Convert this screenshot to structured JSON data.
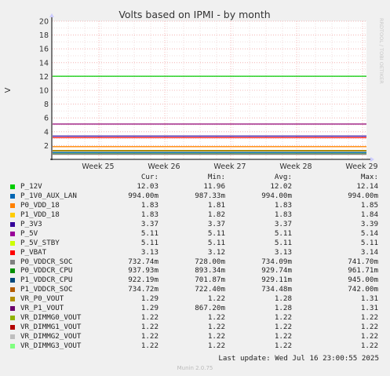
{
  "chart_data": {
    "type": "line",
    "title": "Volts based on IPMI - by month",
    "ylabel": "V",
    "watermark": "RRDTOOL / TOBI OETIKER",
    "ylim": [
      0,
      20
    ],
    "yticks": [
      2,
      4,
      6,
      8,
      10,
      12,
      14,
      16,
      18,
      20
    ],
    "x_ticks": [
      "Week 25",
      "Week 26",
      "Week 27",
      "Week 28",
      "Week 29"
    ],
    "grid": true,
    "legend_headers": {
      "cur": "Cur:",
      "min": "Min:",
      "avg": "Avg:",
      "max": "Max:"
    },
    "series": [
      {
        "name": "P_12V",
        "color": "#00cc00",
        "cur": "12.03",
        "min": "11.96",
        "avg": "12.02",
        "max": "12.14",
        "level": 12.03
      },
      {
        "name": "P_1V0_AUX_LAN",
        "color": "#0066b3",
        "cur": "994.00m",
        "min": "987.33m",
        "avg": "994.00m",
        "max": "994.00m",
        "level": 0.994
      },
      {
        "name": "P0_VDD_18",
        "color": "#ff8000",
        "cur": "1.83",
        "min": "1.81",
        "avg": "1.83",
        "max": "1.85",
        "level": 1.83
      },
      {
        "name": "P1_VDD_18",
        "color": "#ffcc00",
        "cur": "1.83",
        "min": "1.82",
        "avg": "1.83",
        "max": "1.84",
        "level": 1.83
      },
      {
        "name": "P_3V3",
        "color": "#330099",
        "cur": "3.37",
        "min": "3.37",
        "avg": "3.37",
        "max": "3.39",
        "level": 3.37
      },
      {
        "name": "P_5V",
        "color": "#990099",
        "cur": "5.11",
        "min": "5.11",
        "avg": "5.11",
        "max": "5.14",
        "level": 5.11
      },
      {
        "name": "P_5V_STBY",
        "color": "#ccff00",
        "cur": "5.11",
        "min": "5.11",
        "avg": "5.11",
        "max": "5.11",
        "level": 5.11
      },
      {
        "name": "P_VBAT",
        "color": "#ff0000",
        "cur": "3.13",
        "min": "3.12",
        "avg": "3.13",
        "max": "3.14",
        "level": 3.13
      },
      {
        "name": "P0_VDDCR_SOC",
        "color": "#808080",
        "cur": "732.74m",
        "min": "728.00m",
        "avg": "734.09m",
        "max": "741.70m",
        "level": 0.733
      },
      {
        "name": "P0_VDDCR_CPU",
        "color": "#008f00",
        "cur": "937.93m",
        "min": "893.34m",
        "avg": "929.74m",
        "max": "961.71m",
        "level": 0.938
      },
      {
        "name": "P1_VDDCR_CPU",
        "color": "#00487d",
        "cur": "922.19m",
        "min": "701.87m",
        "avg": "929.11m",
        "max": "945.00m",
        "level": 0.922
      },
      {
        "name": "P1_VDDCR_SOC",
        "color": "#b35a00",
        "cur": "734.72m",
        "min": "722.40m",
        "avg": "734.48m",
        "max": "742.00m",
        "level": 0.735
      },
      {
        "name": "VR_P0_VOUT",
        "color": "#b38f00",
        "cur": "1.29",
        "min": "1.22",
        "avg": "1.28",
        "max": "1.31",
        "level": 1.29
      },
      {
        "name": "VR_P1_VOUT",
        "color": "#6b006b",
        "cur": "1.29",
        "min": "867.20m",
        "avg": "1.28",
        "max": "1.31",
        "level": 1.29
      },
      {
        "name": "VR_DIMMG0_VOUT",
        "color": "#8fb300",
        "cur": "1.22",
        "min": "1.22",
        "avg": "1.22",
        "max": "1.22",
        "level": 1.22
      },
      {
        "name": "VR_DIMMG1_VOUT",
        "color": "#b30000",
        "cur": "1.22",
        "min": "1.22",
        "avg": "1.22",
        "max": "1.22",
        "level": 1.22
      },
      {
        "name": "VR_DIMMG2_VOUT",
        "color": "#bebebe",
        "cur": "1.22",
        "min": "1.22",
        "avg": "1.22",
        "max": "1.22",
        "level": 1.22
      },
      {
        "name": "VR_DIMMG3_VOUT",
        "color": "#80ff80",
        "cur": "1.22",
        "min": "1.22",
        "avg": "1.22",
        "max": "1.22",
        "level": 1.22
      }
    ]
  },
  "footer": {
    "last_update": "Last update: Wed Jul 16 23:00:55 2025",
    "version": "Munin 2.0.75"
  }
}
